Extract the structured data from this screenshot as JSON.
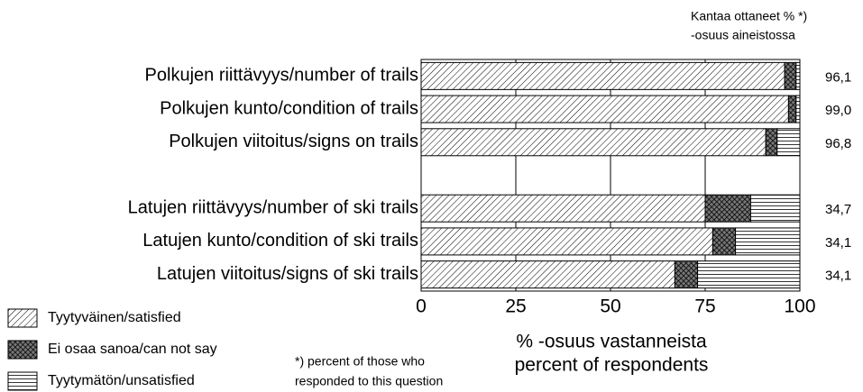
{
  "chart_data": {
    "type": "stacked-bar-horizontal",
    "header": [
      "Kantaa ottaneet %  *)",
      "-osuus aineistossa"
    ],
    "categories": [
      "Polkujen riittävyys/number of trails",
      "Polkujen kunto/condition of trails",
      "Polkujen viitoitus/signs on trails",
      null,
      "Latujen riittävyys/number of ski trails",
      "Latujen kunto/condition of ski trails",
      "Latujen viitoitus/signs of ski trails"
    ],
    "series": [
      {
        "name": "Tyytyväinen/satisfied",
        "color": "#000000",
        "pattern": "diagonal",
        "values": [
          96,
          97,
          91,
          null,
          75,
          77,
          67
        ]
      },
      {
        "name": "Ei osaa sanoa/can not say",
        "color": "#000000",
        "pattern": "crosshatch",
        "values": [
          3,
          2,
          3,
          null,
          12,
          6,
          6
        ]
      },
      {
        "name": "Tyytymätön/unsatisfied",
        "color": "#000000",
        "pattern": "horizontal",
        "values": [
          1,
          1,
          6,
          null,
          13,
          17,
          27
        ]
      }
    ],
    "response_share": {
      "values": [
        96.1,
        99.0,
        96.8,
        null,
        34.7,
        34.1,
        34.1
      ],
      "value_labels": [
        "96,1",
        "99,0",
        "96,8",
        null,
        "34,7",
        "34,1",
        "34,1"
      ]
    },
    "xlim": [
      0,
      100
    ],
    "xticks": [
      0,
      25,
      50,
      75,
      100
    ],
    "grid": true,
    "xlabel": [
      "% -osuus vastanneista",
      "percent of respondents"
    ],
    "footnote": [
      "*) percent of those who",
      "responded to this question"
    ]
  }
}
